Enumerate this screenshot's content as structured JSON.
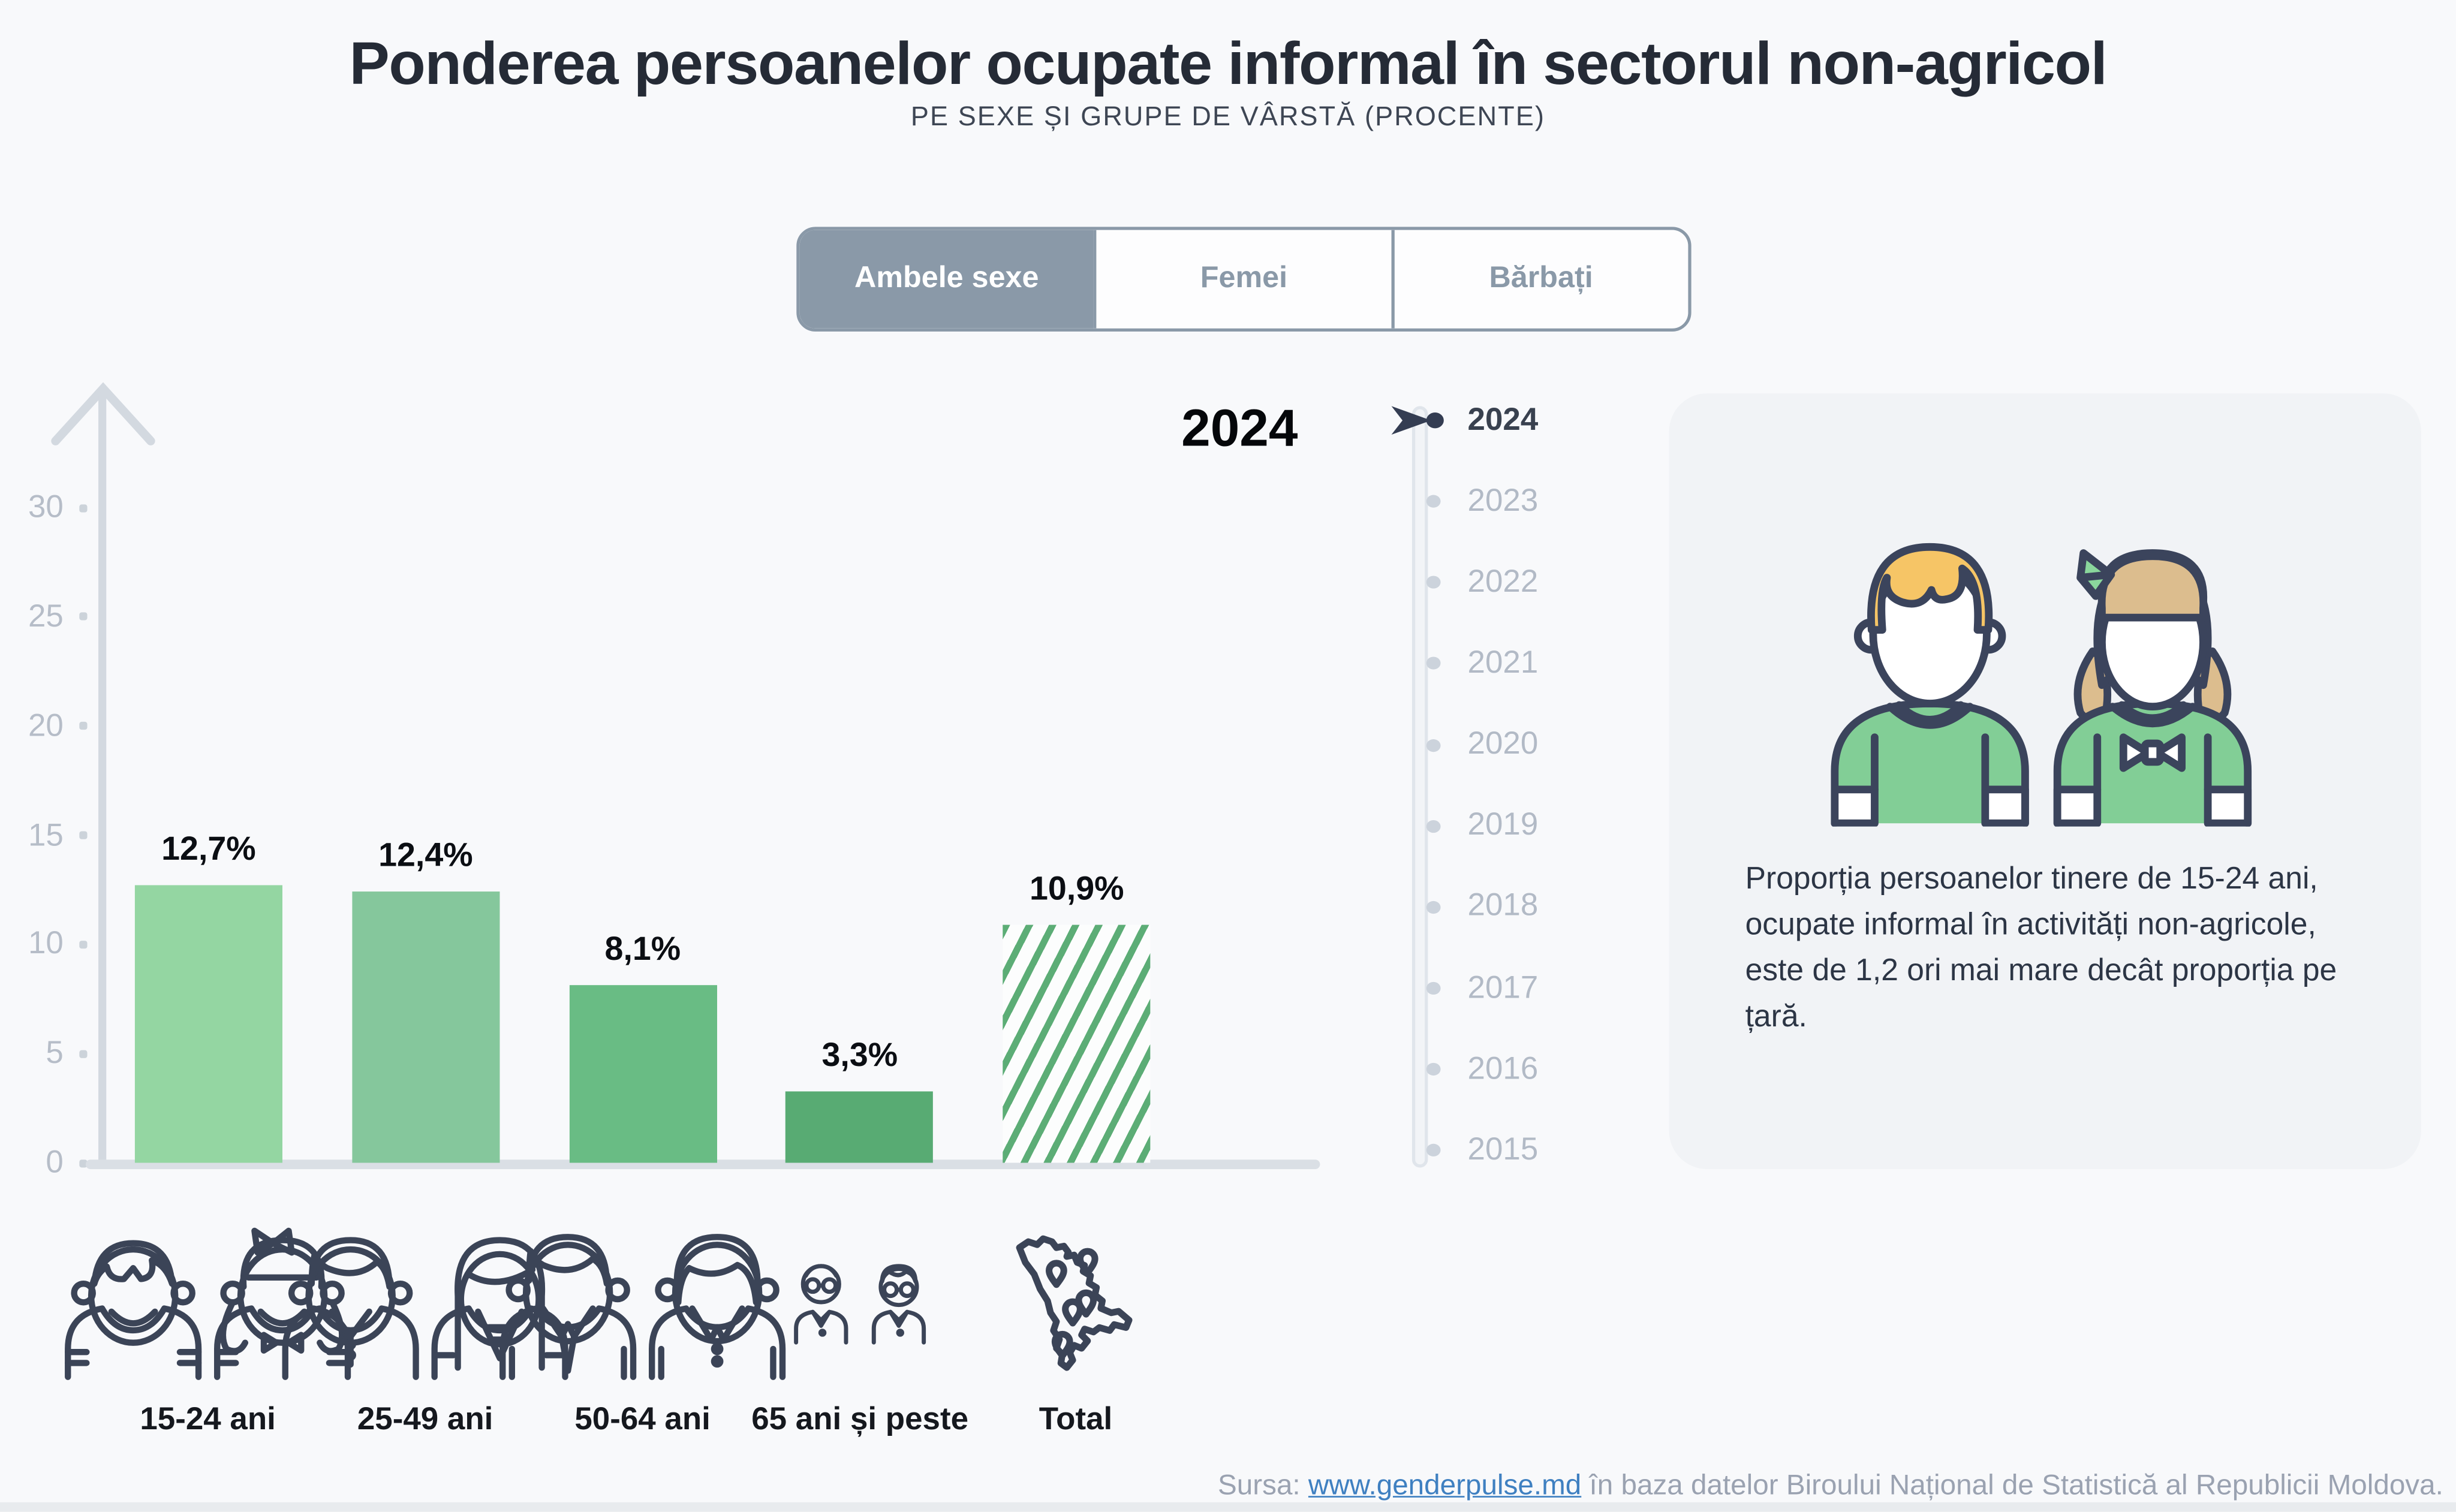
{
  "title": "Ponderea persoanelor ocupate informal în sectorul non-agricol",
  "subtitle": "PE SEXE ȘI GRUPE DE VÂRSTĂ (PROCENTE)",
  "tabs": [
    {
      "label": "Ambele sexe",
      "active": true
    },
    {
      "label": "Femei",
      "active": false
    },
    {
      "label": "Bărbați",
      "active": false
    }
  ],
  "chart_data": {
    "type": "bar",
    "title": "Ponderea persoanelor ocupate informal în sectorul non-agricol",
    "subtitle": "PE SEXE ȘI GRUPE DE VÂRSTĂ (PROCENTE)",
    "year_label": "2024",
    "categories": [
      "15-24 ani",
      "25-49 ani",
      "50-64 ani",
      "65 ani și peste",
      "Total"
    ],
    "values": [
      12.7,
      12.4,
      8.1,
      3.3,
      10.9
    ],
    "value_labels": [
      "12,7%",
      "12,4%",
      "8,1%",
      "3,3%",
      "10,9%"
    ],
    "ylim": [
      0,
      30
    ],
    "yticks": [
      0,
      5,
      10,
      15,
      20,
      25,
      30
    ],
    "grid": false,
    "legend": false,
    "bar_colors": [
      "#94d6a2",
      "#85c79c",
      "#69bc84",
      "#58ab73",
      "hatch"
    ],
    "total_bar_hatched": true
  },
  "timeline": {
    "selected_year": "2024",
    "years": [
      "2024",
      "2023",
      "2022",
      "2021",
      "2020",
      "2019",
      "2018",
      "2017",
      "2016",
      "2015"
    ]
  },
  "panel": {
    "text": "Proporția persoanelor tinere de 15-24 ani, ocupate informal în activități non-agricole, este de 1,2 ori mai mare decât proporția pe țară."
  },
  "source": {
    "prefix": "Sursa: ",
    "link": "www.genderpulse.md",
    "suffix": " în baza datelor Biroului Național de Statistică al Republicii Moldova."
  },
  "colors": {
    "page_bg": "#f8f9fb",
    "panel_bg": "#f1f3f6",
    "tab_active_bg": "#8a99a8",
    "hatch_green": "#5cad76",
    "icon_navy": "#3b4457",
    "timeline_active": "#343d52",
    "link_blue": "#3f80c1",
    "illustration_shirt_green": "#82ce96",
    "illustration_boy_hair": "#f6c566",
    "illustration_girl_hair": "#dcbd8e",
    "illustration_bow_green": "#8ad79c"
  }
}
